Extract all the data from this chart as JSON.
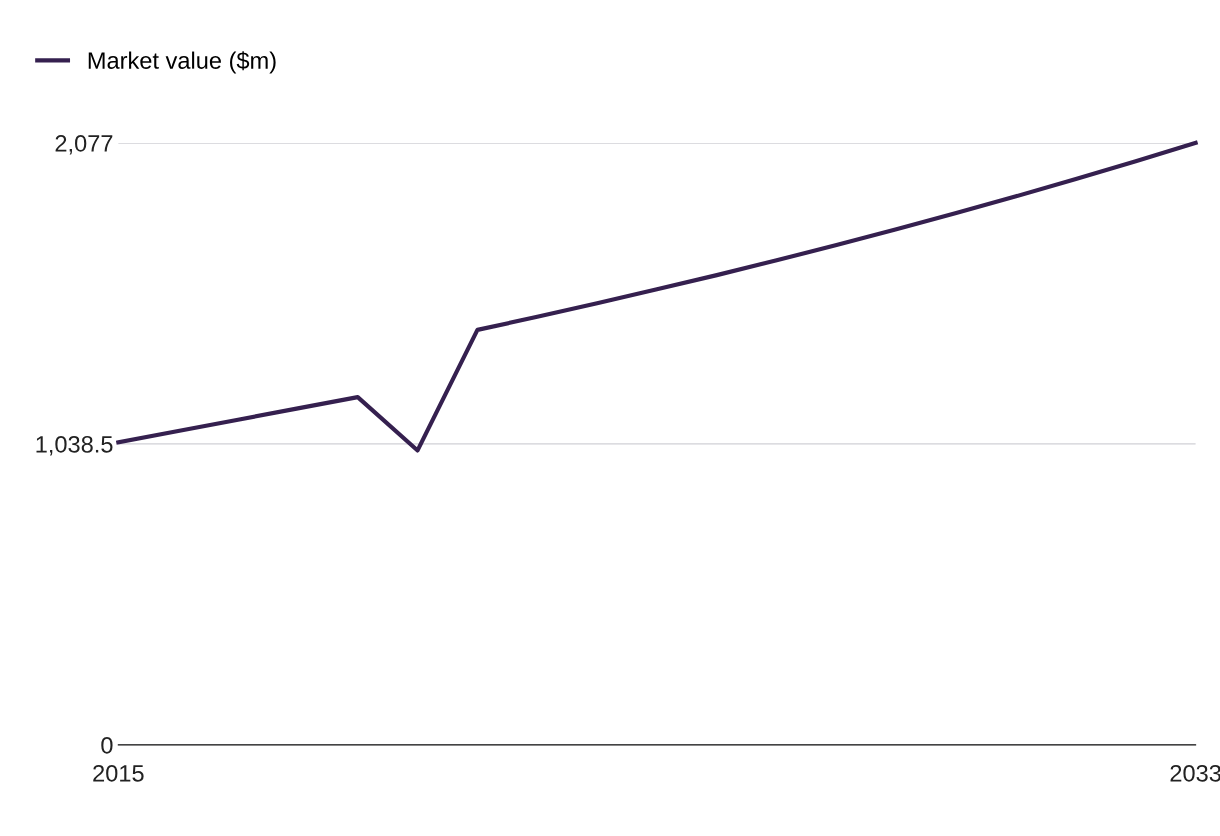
{
  "chart_data": {
    "type": "line",
    "x": [
      2015,
      2016,
      2017,
      2018,
      2019,
      2020,
      2021,
      2022,
      2023,
      2024,
      2025,
      2026,
      2027,
      2028,
      2029,
      2030,
      2031,
      2032,
      2033
    ],
    "series": [
      {
        "name": "Market value ($m)",
        "color": "#35204f",
        "values": [
          1044,
          1083,
          1122,
          1161,
          1200,
          1016,
          1432,
          1477,
          1524,
          1572,
          1621,
          1672,
          1725,
          1779,
          1835,
          1893,
          1953,
          2014,
          2077
        ]
      }
    ],
    "xlim": [
      2015,
      2033
    ],
    "xticks": [
      2015,
      2033
    ],
    "ylim": [
      0,
      2077
    ],
    "yticks": [
      0,
      {
        "value": 1038.5,
        "label": "1,038.5"
      },
      {
        "value": 2077,
        "label": "2,077"
      }
    ],
    "grid": "y",
    "legend": "top left",
    "marker": "none",
    "line_style": "solid"
  }
}
